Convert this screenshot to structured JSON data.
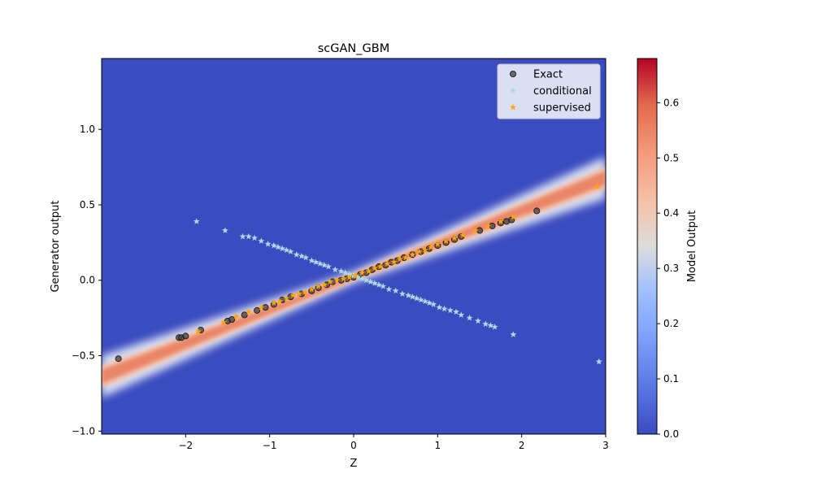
{
  "chart_data": {
    "type": "scatter",
    "title": "scGAN_GBM",
    "xlabel": "Z",
    "ylabel": "Generator output",
    "xlim": [
      -3.0,
      3.0
    ],
    "ylim": [
      -1.02,
      1.47
    ],
    "xticks": [
      -2,
      -1,
      0,
      1,
      2,
      3
    ],
    "xtick_labels": [
      "−2",
      "−1",
      "0",
      "1",
      "2",
      "3"
    ],
    "yticks": [
      -1.0,
      -0.5,
      0.0,
      0.5,
      1.0
    ],
    "ytick_labels": [
      "−1.0",
      "−0.5",
      "0.0",
      "0.5",
      "1.0"
    ],
    "legend_position": "top-right",
    "grid": false,
    "background_heatmap": {
      "description_hidden": true,
      "colormap": "coolwarm",
      "band_center_line": {
        "slope": 0.22,
        "intercept": 0.02
      },
      "peak_value": 0.68
    },
    "colorbar": {
      "label": "Model Output",
      "range": [
        0.0,
        0.68
      ],
      "ticks": [
        0.0,
        0.1,
        0.2,
        0.3,
        0.4,
        0.5,
        0.6
      ],
      "tick_labels": [
        "0.0",
        "0.1",
        "0.2",
        "0.3",
        "0.4",
        "0.5",
        "0.6"
      ]
    },
    "series": [
      {
        "name": "Exact",
        "marker": "circle",
        "color": "#404040",
        "x": [
          -2.8,
          -2.08,
          -2.05,
          -2.0,
          -1.82,
          -1.5,
          -1.45,
          -1.3,
          -1.15,
          -1.05,
          -0.95,
          -0.85,
          -0.75,
          -0.62,
          -0.5,
          -0.42,
          -0.32,
          -0.25,
          -0.15,
          -0.08,
          0.0,
          0.08,
          0.15,
          0.22,
          0.3,
          0.38,
          0.45,
          0.52,
          0.6,
          0.7,
          0.8,
          0.9,
          1.0,
          1.1,
          1.2,
          1.28,
          1.5,
          1.65,
          1.75,
          1.82,
          1.88,
          2.18
        ],
        "y": [
          -0.52,
          -0.38,
          -0.38,
          -0.37,
          -0.33,
          -0.27,
          -0.26,
          -0.23,
          -0.2,
          -0.18,
          -0.16,
          -0.13,
          -0.11,
          -0.09,
          -0.07,
          -0.05,
          -0.03,
          -0.01,
          0.0,
          0.01,
          0.02,
          0.04,
          0.05,
          0.07,
          0.09,
          0.1,
          0.12,
          0.13,
          0.15,
          0.17,
          0.19,
          0.21,
          0.23,
          0.25,
          0.27,
          0.29,
          0.33,
          0.36,
          0.38,
          0.39,
          0.4,
          0.46
        ]
      },
      {
        "name": "conditional",
        "marker": "star",
        "color": "#add8e6",
        "x": [
          -1.87,
          -1.53,
          -1.32,
          -1.25,
          -1.18,
          -1.1,
          -1.02,
          -0.95,
          -0.9,
          -0.85,
          -0.8,
          -0.75,
          -0.68,
          -0.62,
          -0.57,
          -0.5,
          -0.45,
          -0.4,
          -0.35,
          -0.3,
          -0.22,
          -0.15,
          -0.1,
          -0.05,
          0.0,
          0.05,
          0.1,
          0.15,
          0.2,
          0.25,
          0.3,
          0.35,
          0.42,
          0.5,
          0.58,
          0.65,
          0.7,
          0.75,
          0.8,
          0.85,
          0.9,
          0.95,
          1.02,
          1.08,
          1.15,
          1.22,
          1.28,
          1.38,
          1.48,
          1.57,
          1.63,
          1.68,
          1.9,
          2.92
        ],
        "y": [
          0.39,
          0.33,
          0.29,
          0.29,
          0.28,
          0.26,
          0.24,
          0.23,
          0.22,
          0.21,
          0.2,
          0.19,
          0.17,
          0.16,
          0.15,
          0.13,
          0.12,
          0.11,
          0.1,
          0.09,
          0.07,
          0.06,
          0.05,
          0.04,
          0.03,
          0.02,
          0.01,
          0.0,
          -0.01,
          -0.02,
          -0.03,
          -0.04,
          -0.06,
          -0.07,
          -0.09,
          -0.1,
          -0.11,
          -0.12,
          -0.13,
          -0.14,
          -0.15,
          -0.16,
          -0.18,
          -0.19,
          -0.2,
          -0.21,
          -0.23,
          -0.25,
          -0.27,
          -0.29,
          -0.3,
          -0.31,
          -0.36,
          -0.54
        ]
      },
      {
        "name": "supervised",
        "marker": "star",
        "color": "#ffa500",
        "x": [
          -1.85,
          -1.55,
          -1.4,
          -1.25,
          -1.1,
          -0.95,
          -0.88,
          -0.8,
          -0.72,
          -0.65,
          -0.58,
          -0.5,
          -0.42,
          -0.35,
          -0.28,
          -0.2,
          -0.12,
          -0.05,
          0.02,
          0.1,
          0.18,
          0.25,
          0.32,
          0.4,
          0.48,
          0.55,
          0.62,
          0.7,
          0.78,
          0.85,
          0.92,
          1.0,
          1.1,
          1.2,
          1.3,
          1.45,
          1.6,
          1.75,
          1.9,
          2.9
        ],
        "y": [
          -0.34,
          -0.28,
          -0.24,
          -0.21,
          -0.18,
          -0.15,
          -0.14,
          -0.12,
          -0.1,
          -0.09,
          -0.08,
          -0.06,
          -0.04,
          -0.03,
          -0.01,
          0.0,
          0.01,
          0.02,
          0.03,
          0.05,
          0.06,
          0.08,
          0.09,
          0.11,
          0.12,
          0.14,
          0.15,
          0.17,
          0.19,
          0.2,
          0.22,
          0.24,
          0.26,
          0.28,
          0.3,
          0.33,
          0.36,
          0.39,
          0.42,
          0.62
        ]
      }
    ]
  }
}
